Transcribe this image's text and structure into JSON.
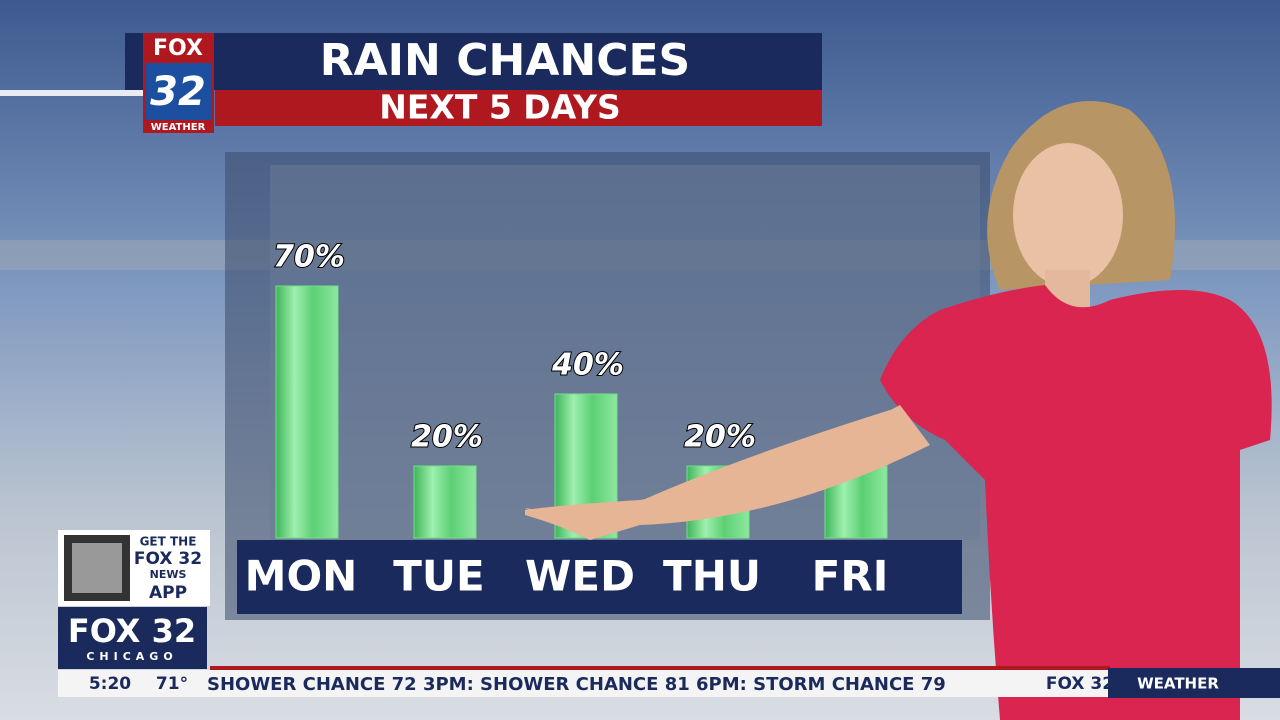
{
  "logo": {
    "top": "FOX",
    "number": "32",
    "label": "WEATHER"
  },
  "chart_data": {
    "type": "bar",
    "title": "RAIN CHANCES",
    "subtitle": "NEXT 5 DAYS",
    "categories": [
      "MON",
      "TUE",
      "WED",
      "THU",
      "FRI"
    ],
    "values": [
      70,
      20,
      40,
      20,
      20
    ],
    "value_labels": [
      "70%",
      "20%",
      "40%",
      "20%",
      null
    ],
    "color": "#6fe08a"
  },
  "app_promo": {
    "line1": "GET THE",
    "brand": "FOX 32",
    "line2": "NEWS",
    "line3": "APP"
  },
  "station": {
    "name": "FOX 32",
    "city": "CHICAGO"
  },
  "ticker": {
    "time": "5:20",
    "temperature": "71°",
    "text": "SHOWER CHANCE 72 3PM: SHOWER CHANCE 81 6PM: STORM CHANCE 79",
    "brand": "FOX 32",
    "section": "WEATHER"
  }
}
